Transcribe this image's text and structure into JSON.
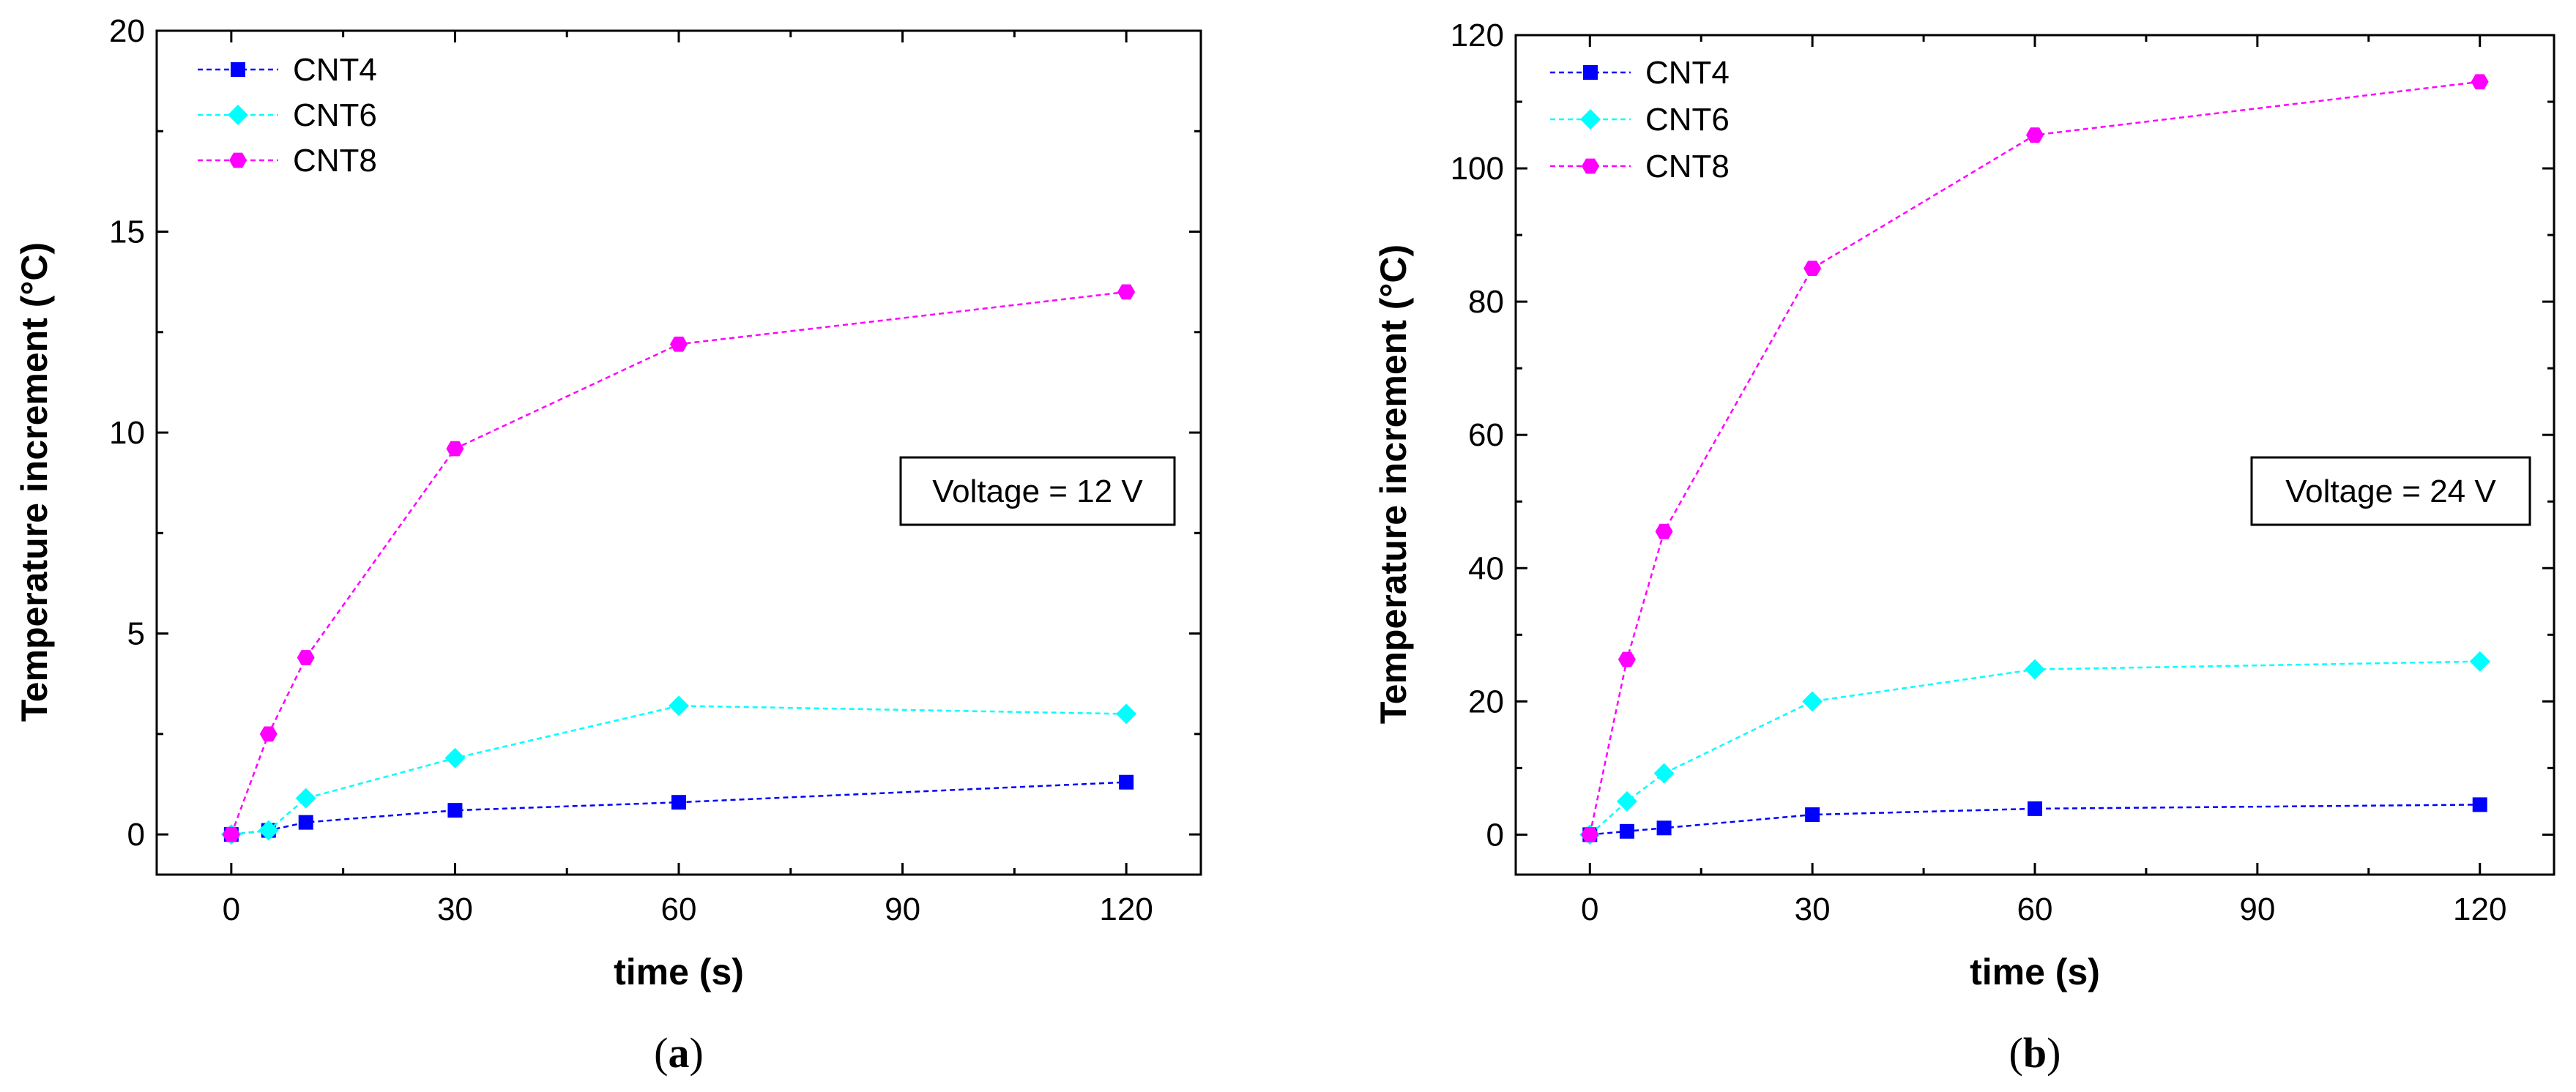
{
  "chart_data": [
    {
      "type": "line",
      "panel_label": "a",
      "xlabel": "time (s)",
      "ylabel": "Temperature increment (°C)",
      "xlim": [
        -10,
        130
      ],
      "ylim": [
        -1,
        20
      ],
      "xticks": [
        0,
        30,
        60,
        90,
        120
      ],
      "yticks": [
        0,
        5,
        10,
        15,
        20
      ],
      "annotation": "Voltage = 12 V",
      "legend_position": "top-left",
      "series": [
        {
          "name": "CNT4",
          "color": "#0000ff",
          "marker": "square",
          "x": [
            0,
            5,
            10,
            30,
            60,
            120
          ],
          "values": [
            0,
            0.1,
            0.3,
            0.6,
            0.8,
            1.3
          ]
        },
        {
          "name": "CNT6",
          "color": "#00ffff",
          "marker": "diamond",
          "x": [
            0,
            5,
            10,
            30,
            60,
            120
          ],
          "values": [
            0,
            0.1,
            0.9,
            1.9,
            3.2,
            3.0
          ]
        },
        {
          "name": "CNT8",
          "color": "#ff00ff",
          "marker": "hexagon",
          "x": [
            0,
            5,
            10,
            30,
            60,
            120
          ],
          "values": [
            0,
            2.5,
            4.4,
            9.6,
            12.2,
            13.5
          ]
        }
      ]
    },
    {
      "type": "line",
      "panel_label": "b",
      "xlabel": "time (s)",
      "ylabel": "Temperature increment (°C)",
      "xlim": [
        -10,
        130
      ],
      "ylim": [
        -6,
        120
      ],
      "xticks": [
        0,
        30,
        60,
        90,
        120
      ],
      "yticks": [
        0,
        20,
        40,
        60,
        80,
        100,
        120
      ],
      "annotation": "Voltage = 24 V",
      "legend_position": "top-left",
      "series": [
        {
          "name": "CNT4",
          "color": "#0000ff",
          "marker": "square",
          "x": [
            0,
            5,
            10,
            30,
            60,
            120
          ],
          "values": [
            0,
            0.5,
            1.0,
            3.0,
            3.9,
            4.5
          ]
        },
        {
          "name": "CNT6",
          "color": "#00ffff",
          "marker": "diamond",
          "x": [
            0,
            5,
            10,
            30,
            60,
            120
          ],
          "values": [
            0,
            5.0,
            9.2,
            20.0,
            24.8,
            26.0
          ]
        },
        {
          "name": "CNT8",
          "color": "#ff00ff",
          "marker": "hexagon",
          "x": [
            0,
            5,
            10,
            30,
            60,
            120
          ],
          "values": [
            0,
            26.3,
            45.5,
            85.0,
            105.0,
            113.0
          ]
        }
      ]
    }
  ]
}
